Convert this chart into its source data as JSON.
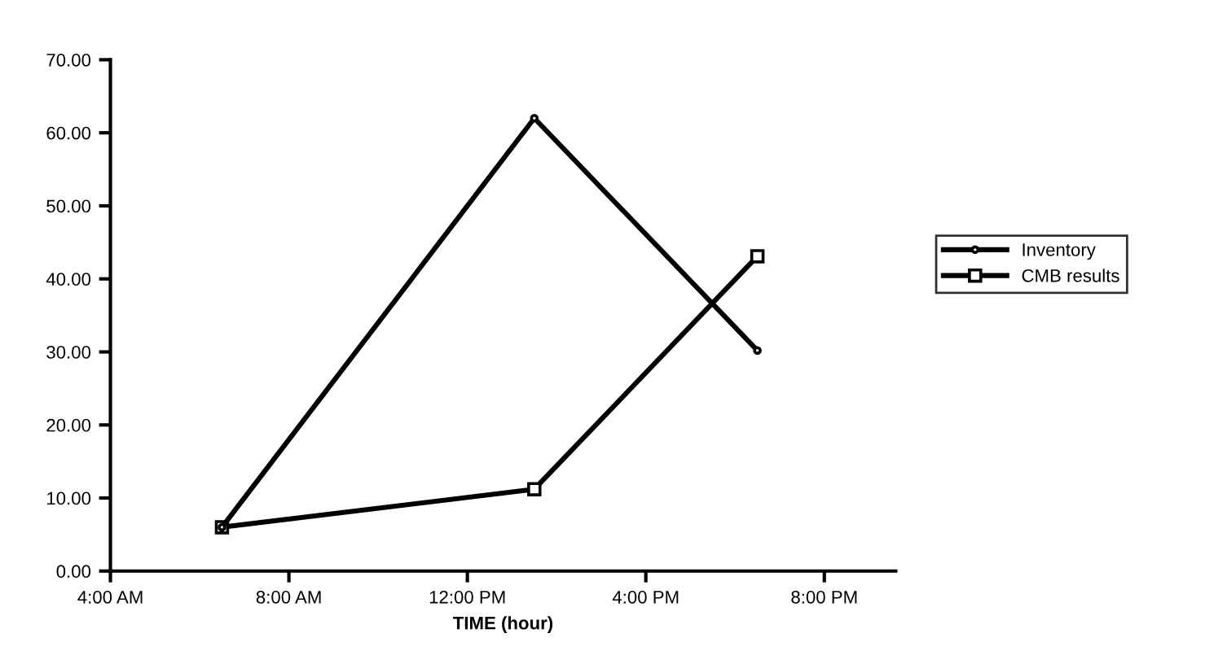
{
  "chart_data": {
    "type": "line",
    "xlabel": "TIME (hour)",
    "x": [
      6.5,
      13.5,
      18.5
    ],
    "series": [
      {
        "name": "Inventory",
        "color": "#000000",
        "marker": "circle",
        "values": [
          6.0,
          62.0,
          30.2
        ]
      },
      {
        "name": "CMB results",
        "color": "#000000",
        "marker": "square",
        "values": [
          6.0,
          11.2,
          43.1
        ]
      }
    ],
    "xlim": [
      4,
      21.6
    ],
    "xticks": [
      {
        "value": 4,
        "label": "4:00 AM"
      },
      {
        "value": 8,
        "label": "8:00 AM"
      },
      {
        "value": 12,
        "label": "12:00 PM"
      },
      {
        "value": 16,
        "label": "4:00 PM"
      },
      {
        "value": 20,
        "label": "8:00 PM"
      }
    ],
    "ylim": [
      0,
      70
    ],
    "yticks": [
      {
        "value": 0,
        "label": "0.00"
      },
      {
        "value": 10,
        "label": "10.00"
      },
      {
        "value": 20,
        "label": "20.00"
      },
      {
        "value": 30,
        "label": "30.00"
      },
      {
        "value": 40,
        "label": "40.00"
      },
      {
        "value": 50,
        "label": "50.00"
      },
      {
        "value": 60,
        "label": "60.00"
      },
      {
        "value": 70,
        "label": "70.00"
      }
    ],
    "grid": false,
    "legend": "right",
    "line_style": "solid"
  }
}
